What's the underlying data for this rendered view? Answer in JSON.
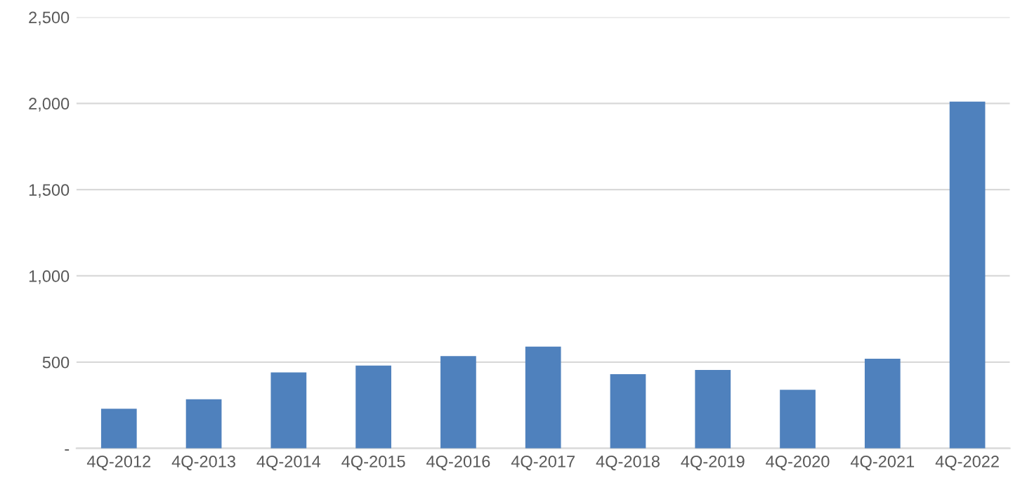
{
  "chart_data": {
    "type": "bar",
    "categories": [
      "4Q-2012",
      "4Q-2013",
      "4Q-2014",
      "4Q-2015",
      "4Q-2016",
      "4Q-2017",
      "4Q-2018",
      "4Q-2019",
      "4Q-2020",
      "4Q-2021",
      "4Q-2022"
    ],
    "values": [
      230,
      285,
      440,
      480,
      535,
      590,
      430,
      455,
      340,
      520,
      2010
    ],
    "color": "#4f81bd",
    "ylim": [
      0,
      2500
    ],
    "yticks": [
      {
        "value": 0,
        "label": "-"
      },
      {
        "value": 500,
        "label": "500"
      },
      {
        "value": 1000,
        "label": "1,000"
      },
      {
        "value": 1500,
        "label": "1,500"
      },
      {
        "value": 2000,
        "label": "2,000"
      },
      {
        "value": 2500,
        "label": "2,500"
      }
    ],
    "grid": "y"
  }
}
